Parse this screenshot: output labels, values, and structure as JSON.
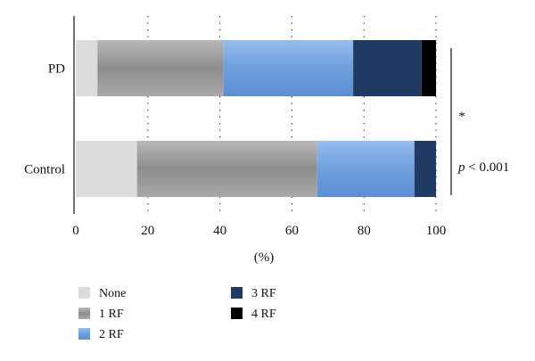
{
  "chart_data": {
    "type": "bar",
    "orientation": "horizontal",
    "stacked": true,
    "categories": [
      "PD",
      "Control"
    ],
    "series": [
      {
        "name": "None",
        "values": [
          6,
          17
        ],
        "color": "#dcdcdc",
        "fill_style": "flat"
      },
      {
        "name": "1 RF",
        "values": [
          35,
          50
        ],
        "color": "#9a9a9a",
        "fill_style": "gradient-gray"
      },
      {
        "name": "2 RF",
        "values": [
          36,
          27
        ],
        "color": "#7aa6de",
        "fill_style": "gradient-blue"
      },
      {
        "name": "3 RF",
        "values": [
          19,
          6
        ],
        "color": "#1f3a63",
        "fill_style": "flat"
      },
      {
        "name": "4 RF",
        "values": [
          4,
          0
        ],
        "color": "#000000",
        "fill_style": "flat"
      }
    ],
    "x_ticks": [
      0,
      20,
      40,
      60,
      80,
      100
    ],
    "xlim": [
      0,
      100
    ],
    "xlabel": "(%)",
    "grid": "dotted vertical",
    "legend_position": "bottom-left",
    "annotations": {
      "significance_mark": "*",
      "p_prefix": "p",
      "p_rest": " < 0.001"
    }
  }
}
